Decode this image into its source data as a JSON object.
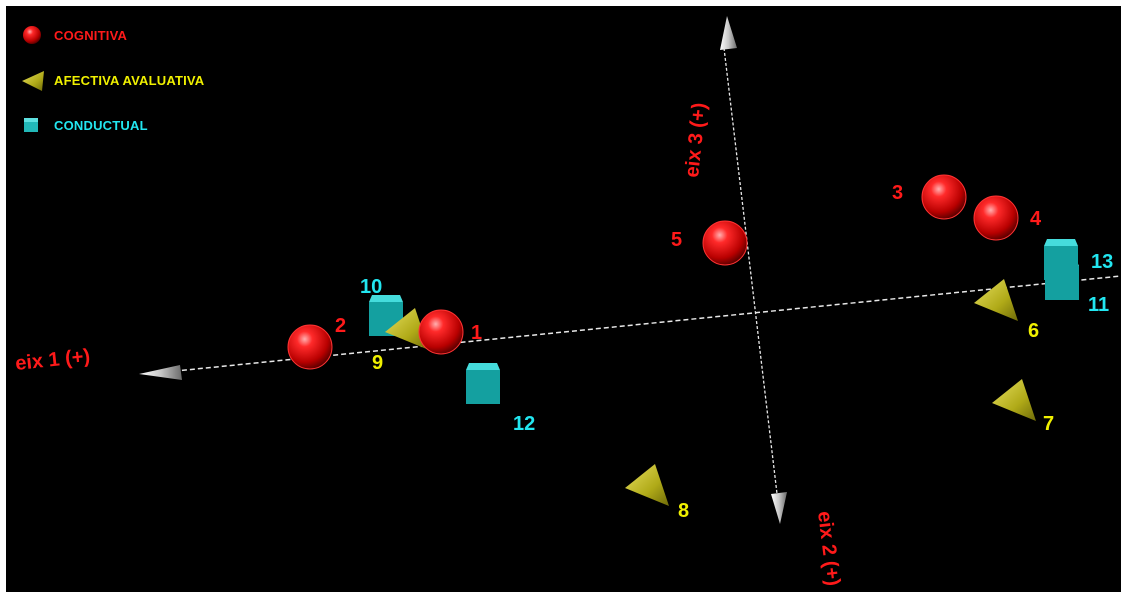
{
  "chart_data": {
    "type": "scatter3d",
    "legend": [
      {
        "name": "COGNITIVA",
        "shape": "sphere",
        "color": "#ff1a1a"
      },
      {
        "name": "AFECTIVA AVALUATIVA",
        "shape": "cone",
        "color": "#c8c41a"
      },
      {
        "name": "CONDUCTUAL",
        "shape": "cube",
        "color": "#22c8c8"
      }
    ],
    "axes": [
      {
        "label": "eix 1 (+)",
        "color": "#ff1a1a"
      },
      {
        "label": "eix 2 (+)",
        "color": "#ff1a1a"
      },
      {
        "label": "eix 3 (+)",
        "color": "#ff1a1a"
      }
    ],
    "points": [
      {
        "label": "1",
        "group": "COGNITIVA"
      },
      {
        "label": "2",
        "group": "COGNITIVA"
      },
      {
        "label": "3",
        "group": "COGNITIVA"
      },
      {
        "label": "4",
        "group": "COGNITIVA"
      },
      {
        "label": "5",
        "group": "COGNITIVA"
      },
      {
        "label": "6",
        "group": "AFECTIVA AVALUATIVA"
      },
      {
        "label": "7",
        "group": "AFECTIVA AVALUATIVA"
      },
      {
        "label": "8",
        "group": "AFECTIVA AVALUATIVA"
      },
      {
        "label": "9",
        "group": "AFECTIVA AVALUATIVA"
      },
      {
        "label": "10",
        "group": "CONDUCTUAL"
      },
      {
        "label": "11",
        "group": "CONDUCTUAL"
      },
      {
        "label": "12",
        "group": "CONDUCTUAL"
      },
      {
        "label": "13",
        "group": "CONDUCTUAL"
      }
    ],
    "label_colors": {
      "COGNITIVA": "#ff1a1a",
      "AFECTIVA AVALUATIVA": "#f0f000",
      "CONDUCTUAL": "#22e6f0"
    }
  }
}
